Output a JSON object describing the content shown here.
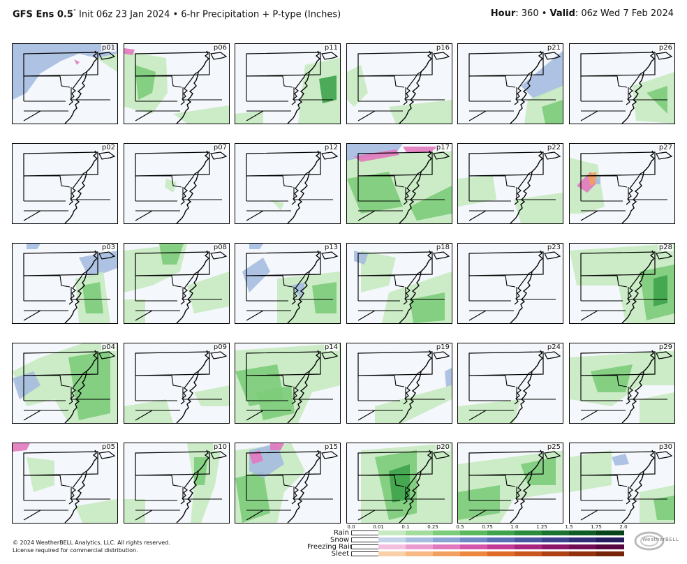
{
  "header": {
    "title_bold": "GFS Ens 0.5",
    "title_deg": "°",
    "title_rest": " Init 06z 23 Jan 2024 • 6-hr Precipitation + P-type (Inches)",
    "hour_label": "Hour",
    "hour_value": ": 360 • ",
    "valid_label": "Valid",
    "valid_value": ": 06z Wed 7 Feb 2024"
  },
  "panels": [
    {
      "id": "p01",
      "row": 0,
      "col": 0
    },
    {
      "id": "p06",
      "row": 0,
      "col": 1
    },
    {
      "id": "p11",
      "row": 0,
      "col": 2
    },
    {
      "id": "p16",
      "row": 0,
      "col": 3
    },
    {
      "id": "p21",
      "row": 0,
      "col": 4
    },
    {
      "id": "p26",
      "row": 0,
      "col": 5
    },
    {
      "id": "p02",
      "row": 1,
      "col": 0
    },
    {
      "id": "p07",
      "row": 1,
      "col": 1
    },
    {
      "id": "p12",
      "row": 1,
      "col": 2
    },
    {
      "id": "p17",
      "row": 1,
      "col": 3
    },
    {
      "id": "p22",
      "row": 1,
      "col": 4
    },
    {
      "id": "p27",
      "row": 1,
      "col": 5
    },
    {
      "id": "p03",
      "row": 2,
      "col": 0
    },
    {
      "id": "p08",
      "row": 2,
      "col": 1
    },
    {
      "id": "p13",
      "row": 2,
      "col": 2
    },
    {
      "id": "p18",
      "row": 2,
      "col": 3
    },
    {
      "id": "p23",
      "row": 2,
      "col": 4
    },
    {
      "id": "p28",
      "row": 2,
      "col": 5
    },
    {
      "id": "p04",
      "row": 3,
      "col": 0
    },
    {
      "id": "p09",
      "row": 3,
      "col": 1
    },
    {
      "id": "p14",
      "row": 3,
      "col": 2
    },
    {
      "id": "p19",
      "row": 3,
      "col": 3
    },
    {
      "id": "p24",
      "row": 3,
      "col": 4
    },
    {
      "id": "p29",
      "row": 3,
      "col": 5
    },
    {
      "id": "p05",
      "row": 4,
      "col": 0
    },
    {
      "id": "p10",
      "row": 4,
      "col": 1
    },
    {
      "id": "p15",
      "row": 4,
      "col": 2
    },
    {
      "id": "p20",
      "row": 4,
      "col": 3
    },
    {
      "id": "p25",
      "row": 4,
      "col": 4
    },
    {
      "id": "p30",
      "row": 4,
      "col": 5
    }
  ],
  "legend": {
    "ticks": [
      "0.0",
      "0.01",
      "0.1",
      "0.25",
      "0.5",
      "0.75",
      "1.0",
      "1.25",
      "1.5",
      "1.75",
      "2.0"
    ],
    "rows": [
      {
        "label": "Rain",
        "colors": [
          "#ffffff",
          "#c6eac0",
          "#a3dc9c",
          "#7dcc7a",
          "#5ab95d",
          "#3ea34b",
          "#2a8c3c",
          "#1b7330",
          "#105c25",
          "#08441a"
        ]
      },
      {
        "label": "Snow",
        "colors": [
          "#ffffff",
          "#c3d3ea",
          "#a6bde0",
          "#8aa4d4",
          "#6f89c6",
          "#5a6fb6",
          "#4a57a3",
          "#3d418e",
          "#322d77",
          "#281c60"
        ]
      },
      {
        "label": "Freezing Rain",
        "colors": [
          "#ffffff",
          "#f3c0e0",
          "#eb9ccf",
          "#e278be",
          "#d456ab",
          "#c03a96",
          "#a82580",
          "#8d166a",
          "#710d55",
          "#570640"
        ]
      },
      {
        "label": "Sleet",
        "colors": [
          "#ffffff",
          "#f9d0a8",
          "#f6b983",
          "#f2a05f",
          "#ec873f",
          "#de6c28",
          "#c9561c",
          "#ae4214",
          "#92310d",
          "#762307"
        ]
      }
    ]
  },
  "footer": {
    "copyright_line1": "© 2024 WeatherBELL Analytics, LLC. All rights reserved.",
    "copyright_line2": "License required for commercial distribution.",
    "logo_text": "WeatherBELL"
  },
  "colors": {
    "rain_light": "#c6eac0",
    "rain_mid": "#7dcc7a",
    "rain_dark": "#3ea34b",
    "snow": "#a6bde0",
    "frzr": "#e278be",
    "sleet": "#f2a05f"
  }
}
